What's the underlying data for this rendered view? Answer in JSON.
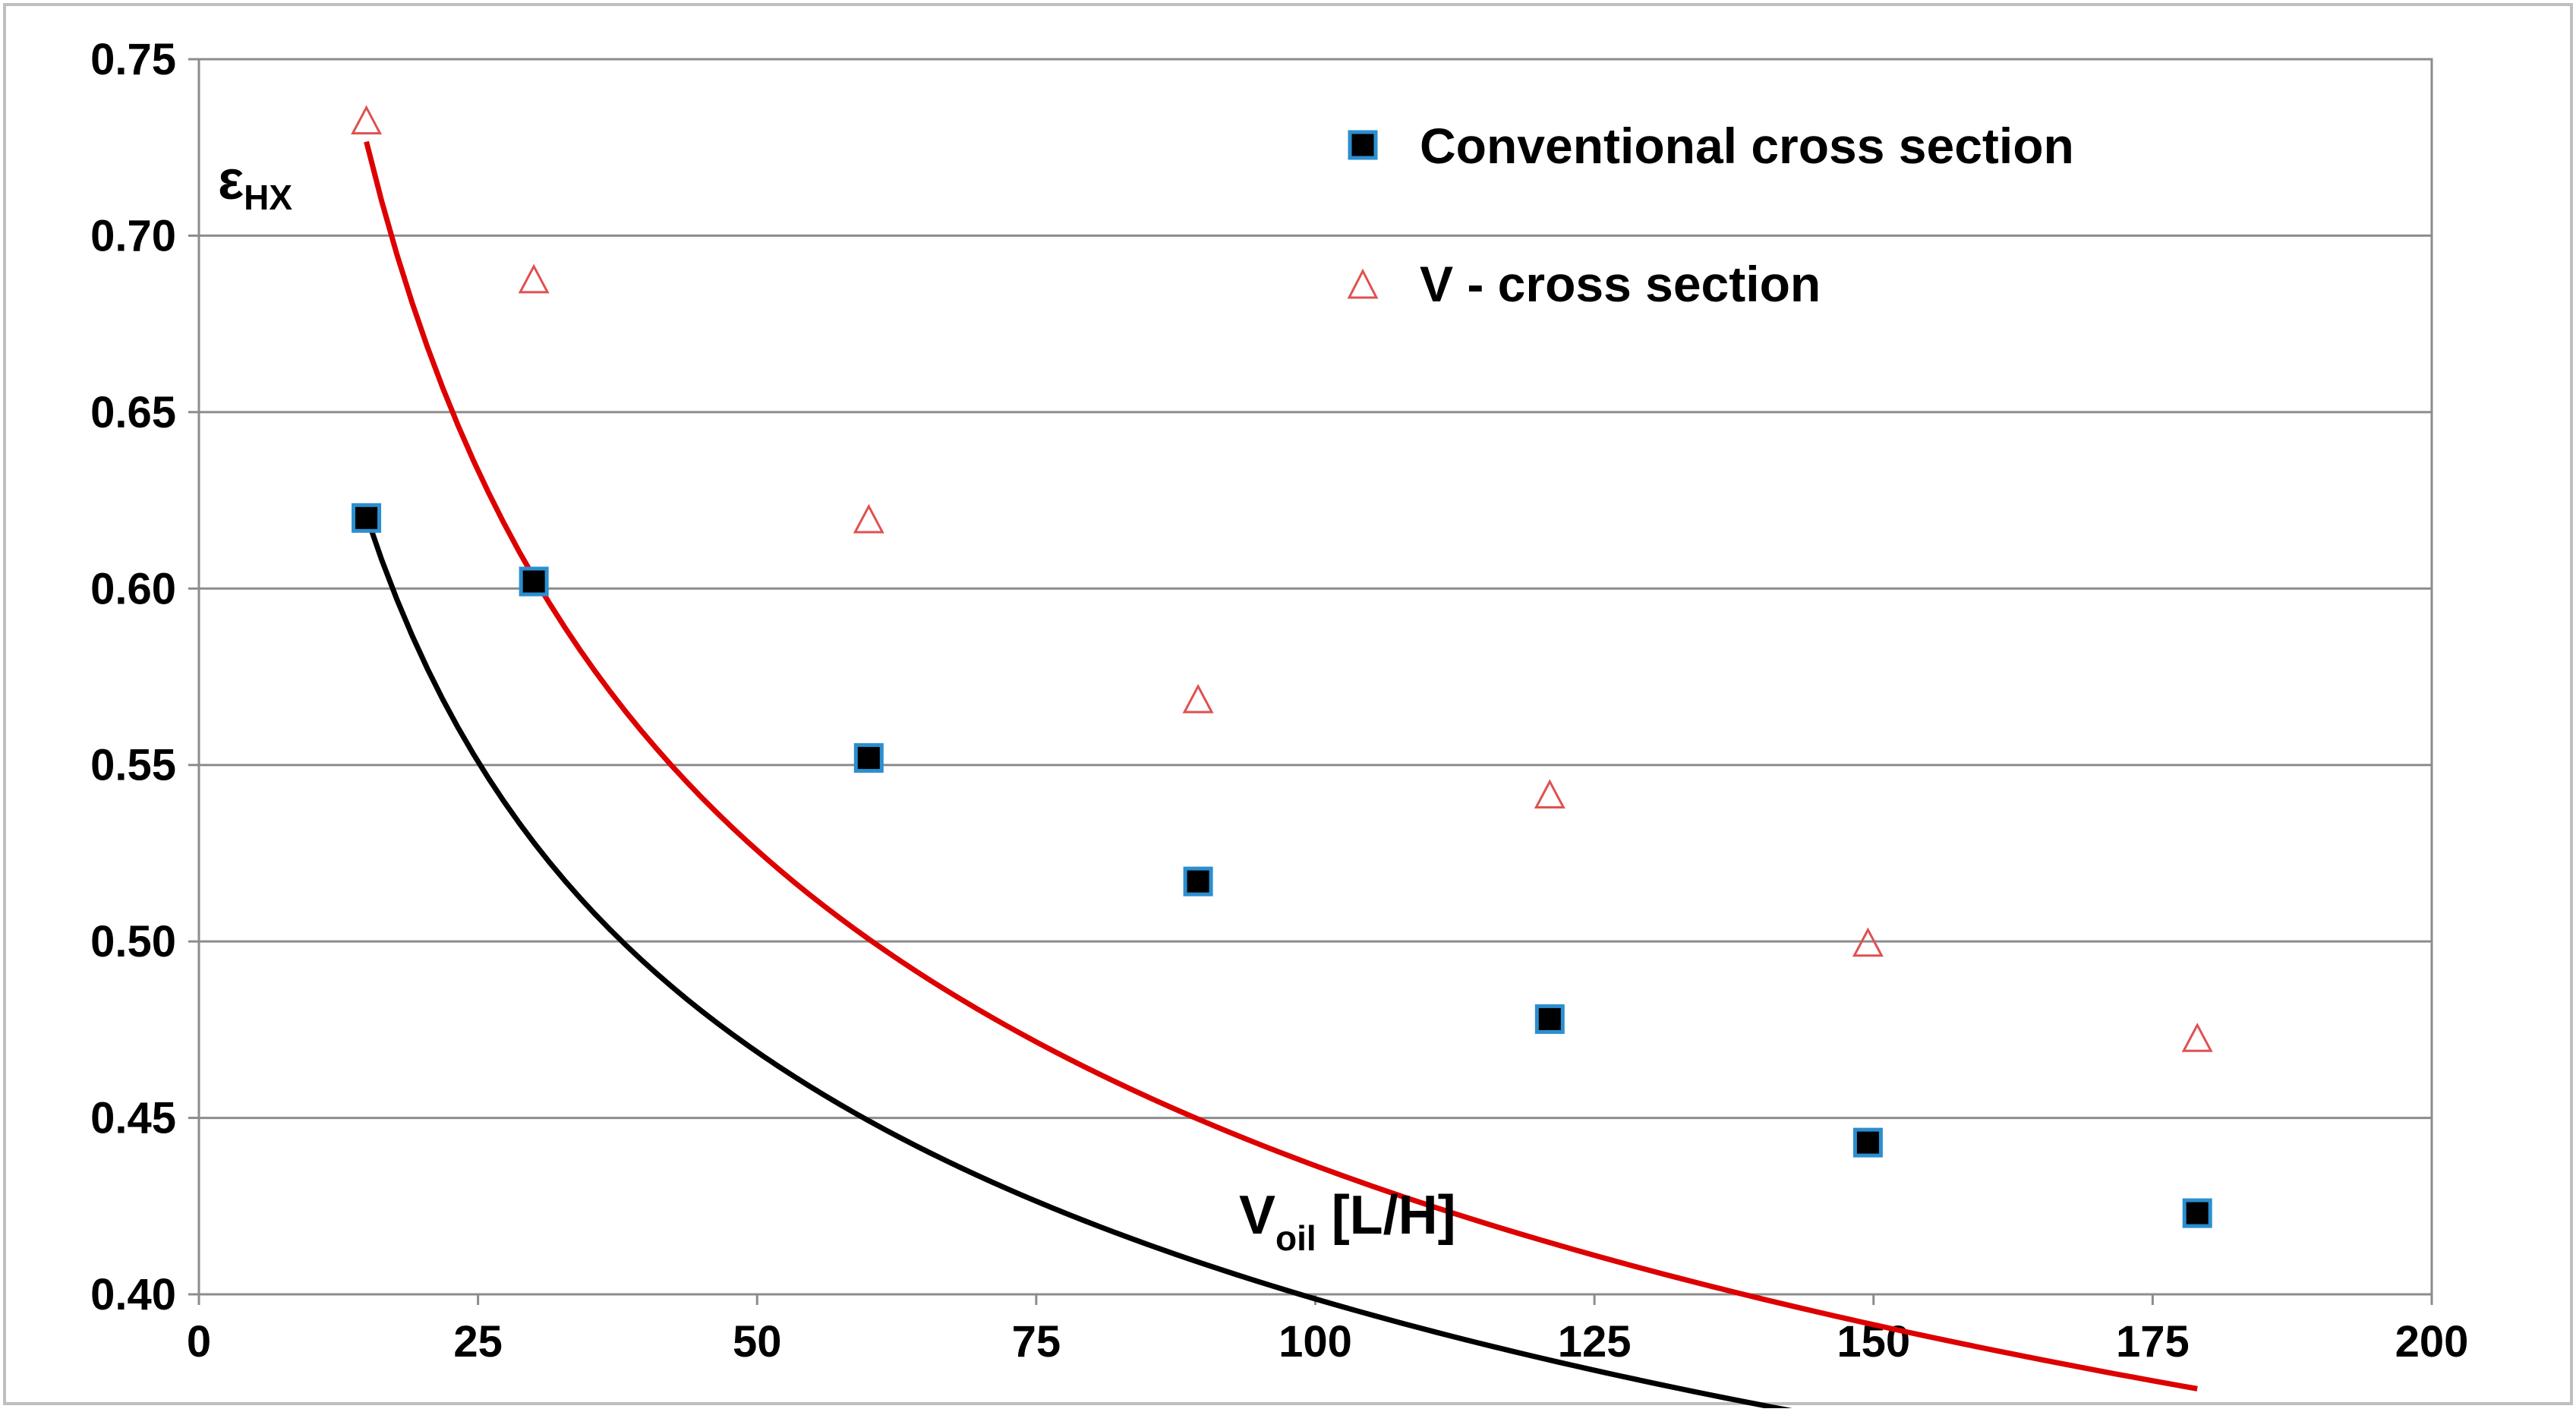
{
  "chart_data": {
    "type": "scatter",
    "title": "",
    "xlabel": {
      "main": "V",
      "subscript": "oil",
      "suffix": " [L/H]"
    },
    "ylabel": {
      "main": "ε",
      "subscript": "HX"
    },
    "xlim": [
      0,
      200
    ],
    "ylim": [
      0.4,
      0.75
    ],
    "x_ticks": [
      0,
      25,
      50,
      75,
      100,
      125,
      150,
      175,
      200
    ],
    "x_tick_labels": [
      "0",
      "25",
      "50",
      "75",
      "100",
      "125",
      "150",
      "175",
      "200"
    ],
    "y_ticks": [
      0.4,
      0.45,
      0.5,
      0.55,
      0.6,
      0.65,
      0.7,
      0.75
    ],
    "y_tick_labels": [
      "0.40",
      "0.45",
      "0.50",
      "0.55",
      "0.60",
      "0.65",
      "0.70",
      "0.75"
    ],
    "grid": "horizontal",
    "legend_position": "top-right",
    "series": [
      {
        "name": "Conventional cross section",
        "marker": "filled-square",
        "marker_fill": "#000000",
        "marker_edge": "#2b8fd0",
        "trend_color": "#000000",
        "x": [
          15,
          30,
          60,
          89.5,
          121,
          149.5,
          179
        ],
        "y": [
          0.62,
          0.602,
          0.552,
          0.517,
          0.478,
          0.443,
          0.423
        ],
        "trend": {
          "type": "power",
          "a": 1.1675,
          "b": -0.2333
        }
      },
      {
        "name": "V - cross section",
        "marker": "open-triangle",
        "marker_fill": "none",
        "marker_edge": "#e05050",
        "trend_color": "#dd0000",
        "x": [
          15,
          30,
          60,
          89.5,
          121,
          149.5,
          179
        ],
        "y": [
          0.732,
          0.687,
          0.619,
          0.568,
          0.541,
          0.499,
          0.472
        ],
        "trend": {
          "type": "power",
          "a": 1.5043,
          "b": -0.2687
        }
      }
    ]
  }
}
